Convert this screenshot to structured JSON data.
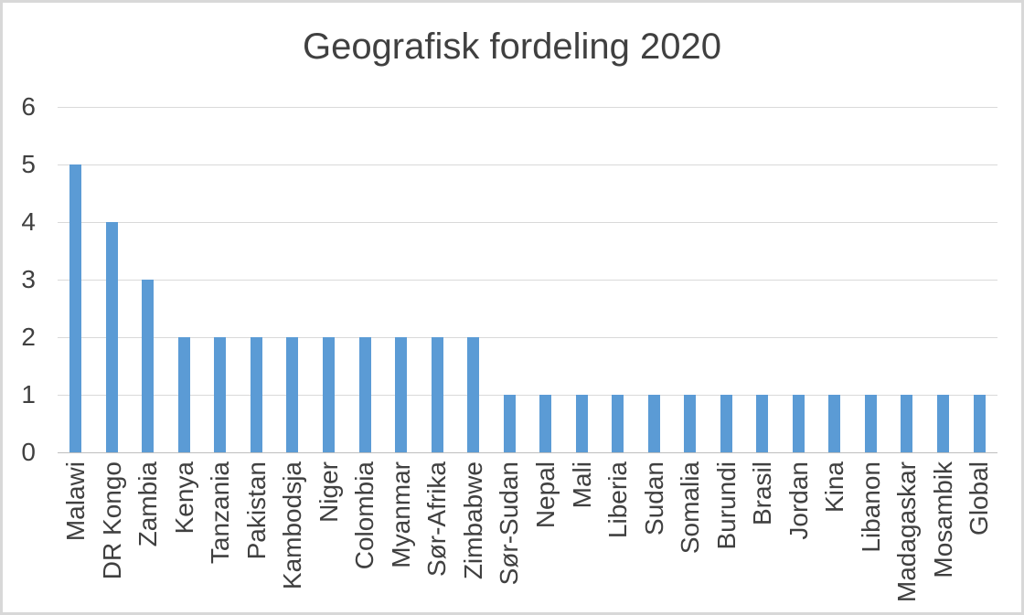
{
  "chart_data": {
    "type": "bar",
    "title": "Geografisk fordeling 2020",
    "categories": [
      "Malawi",
      "DR Kongo",
      "Zambia",
      "Kenya",
      "Tanzania",
      "Pakistan",
      "Kambodsja",
      "Niger",
      "Colombia",
      "Myanmar",
      "Sør-Afrika",
      "Zimbabwe",
      "Sør-Sudan",
      "Nepal",
      "Mali",
      "Liberia",
      "Sudan",
      "Somalia",
      "Burundi",
      "Brasil",
      "Jordan",
      "Kina",
      "Libanon",
      "Madagaskar",
      "Mosambik",
      "Global"
    ],
    "values": [
      5,
      4,
      3,
      2,
      2,
      2,
      2,
      2,
      2,
      2,
      2,
      2,
      1,
      1,
      1,
      1,
      1,
      1,
      1,
      1,
      1,
      1,
      1,
      1,
      1,
      1
    ],
    "ylim": [
      0,
      6
    ],
    "yticks": [
      0,
      1,
      2,
      3,
      4,
      5,
      6
    ],
    "grid": true,
    "legend": false,
    "x_label_rotation_degrees": 90
  },
  "colors": {
    "bar": "#5B9BD5",
    "text": "#404040",
    "gridline": "#D9D9D9",
    "axis_line": "#BFBFBF",
    "frame_border": "#D8D8D8",
    "background": "#FFFFFF"
  }
}
